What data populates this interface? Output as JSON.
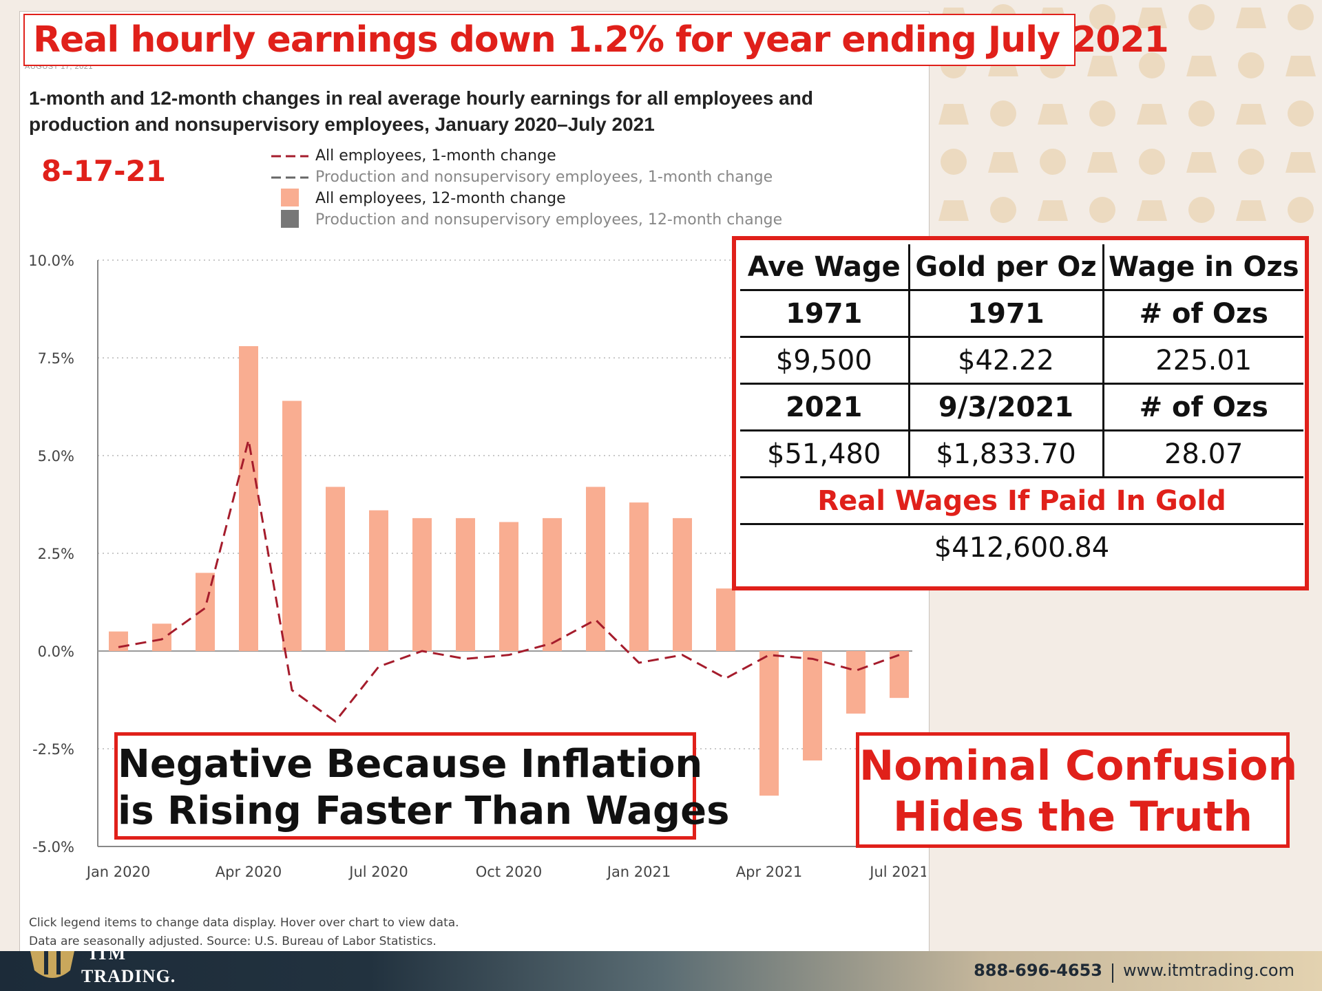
{
  "headline": "Real hourly earnings down 1.2% for year ending July 2021",
  "release_date": "AUGUST 17, 2021",
  "date_stamp": "8-17-21",
  "footer": {
    "line1": "Click legend items to change data display. Hover over chart to view data.",
    "line2": "Data are seasonally adjusted. Source: U.S. Bureau of Labor Statistics."
  },
  "chart_data": {
    "type": "bar",
    "title": "1-month and 12-month changes in real average hourly earnings for all employees and production and nonsupervisory employees, January 2020–July 2021",
    "categories": [
      "Jan 2020",
      "Feb 2020",
      "Mar 2020",
      "Apr 2020",
      "May 2020",
      "Jun 2020",
      "Jul 2020",
      "Aug 2020",
      "Sep 2020",
      "Oct 2020",
      "Nov 2020",
      "Dec 2020",
      "Jan 2021",
      "Feb 2021",
      "Mar 2021",
      "Apr 2021",
      "May 2021",
      "Jun 2021",
      "Jul 2021"
    ],
    "tick_labels": [
      {
        "index": 0,
        "label": "Jan 2020"
      },
      {
        "index": 3,
        "label": "Apr 2020"
      },
      {
        "index": 6,
        "label": "Jul 2020"
      },
      {
        "index": 9,
        "label": "Oct 2020"
      },
      {
        "index": 12,
        "label": "Jan 2021"
      },
      {
        "index": 15,
        "label": "Apr 2021"
      },
      {
        "index": 18,
        "label": "Jul 2021"
      }
    ],
    "y_ticks": [
      "10.0%",
      "7.5%",
      "5.0%",
      "2.5%",
      "0.0%",
      "-2.5%",
      "-5.0%"
    ],
    "ylim": [
      -5,
      10
    ],
    "grid": true,
    "legend_placement": "top",
    "series": [
      {
        "name": "All employees, 1-month change",
        "kind": "line",
        "style": "dashed",
        "color": "#a51c2c",
        "active": true,
        "values": [
          0.1,
          0.3,
          1.1,
          5.4,
          -1.0,
          -1.8,
          -0.4,
          0.0,
          -0.2,
          -0.1,
          0.2,
          0.8,
          -0.3,
          -0.1,
          -0.7,
          -0.1,
          -0.2,
          -0.5,
          -0.1
        ]
      },
      {
        "name": "Production and nonsupervisory employees, 1-month change",
        "kind": "line",
        "style": "dashed",
        "color": "#666666",
        "active": false
      },
      {
        "name": "All employees, 12-month change",
        "kind": "bar",
        "color": "#f9ad91",
        "active": true,
        "values": [
          0.5,
          0.7,
          2.0,
          7.8,
          6.4,
          4.2,
          3.6,
          3.4,
          3.4,
          3.3,
          3.4,
          4.2,
          3.8,
          3.4,
          1.6,
          -3.7,
          -2.8,
          -1.6,
          -1.2
        ]
      },
      {
        "name": "Production and nonsupervisory employees, 12-month change",
        "kind": "bar",
        "color": "#777777",
        "active": false
      }
    ]
  },
  "gold_table": {
    "headers": [
      "Ave Wage",
      "Gold per Oz",
      "Wage in Ozs"
    ],
    "rows": [
      {
        "cells": [
          "1971",
          "1971",
          "# of Ozs"
        ],
        "bold": true
      },
      {
        "cells": [
          "$9,500",
          "$42.22",
          "225.01"
        ],
        "bold": false
      },
      {
        "cells": [
          "2021",
          "9/3/2021",
          "# of Ozs"
        ],
        "bold": true
      },
      {
        "cells": [
          "$51,480",
          "$1,833.70",
          "28.07"
        ],
        "bold": false
      }
    ],
    "highlight_label": "Real Wages If Paid In Gold",
    "highlight_value": "$412,600.84"
  },
  "callout_left": [
    "Negative Because Inflation",
    "is Rising Faster Than Wages"
  ],
  "callout_right": [
    "Nominal Confusion",
    "Hides the Truth"
  ],
  "brand": {
    "logo_text": "ITM",
    "name": "TRADING.",
    "phone": "888-696-4653",
    "website": "www.itmtrading.com"
  },
  "colors": {
    "accent_red": "#e0201a",
    "bar": "#f9ad91",
    "line": "#a51c2c",
    "background": "#f3ece5"
  }
}
